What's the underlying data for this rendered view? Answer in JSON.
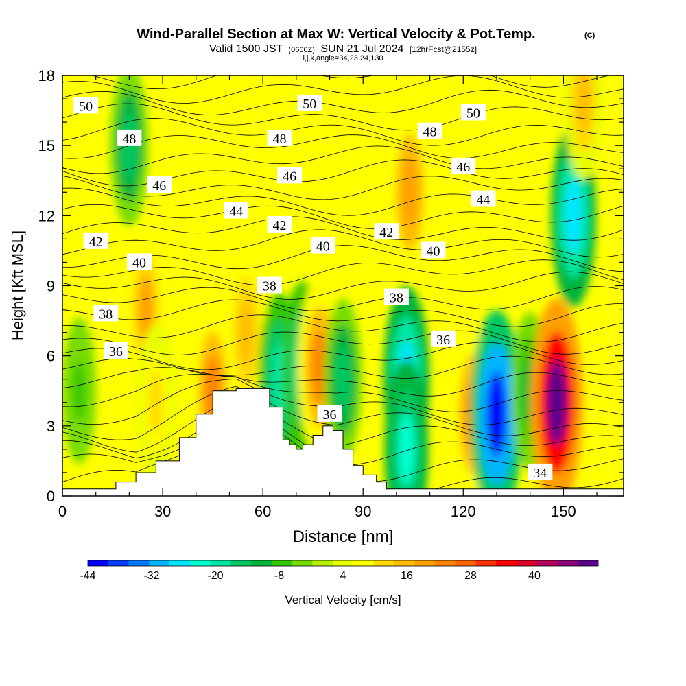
{
  "chart_data": {
    "type": "heatmap",
    "title": "Wind-Parallel Section at Max W: Vertical Velocity & Pot.Temp.",
    "title_mark": "(C)",
    "subtitle": {
      "valid": "Valid 1500 JST",
      "utc": "(0600Z)",
      "date": "SUN 21 Jul 2024",
      "forecast": "[12hrFcst@2155z]"
    },
    "section_params": "i,j,k,angle=34,23,24,130",
    "xlabel": "Distance [nm]",
    "ylabel": "Height [Kft MSL]",
    "xlim": [
      0,
      168
    ],
    "ylim": [
      0,
      18
    ],
    "x_ticks": [
      "0",
      "30",
      "60",
      "90",
      "120",
      "150"
    ],
    "x_tick_values": [
      0,
      30,
      60,
      90,
      120,
      150
    ],
    "y_ticks": [
      "0",
      "3",
      "6",
      "9",
      "12",
      "15",
      "18"
    ],
    "y_tick_values": [
      0,
      3,
      6,
      9,
      12,
      15,
      18
    ],
    "colorbar": {
      "label": "Vertical Velocity [cm/s]",
      "ticks": [
        "-44",
        "-32",
        "-20",
        "-8",
        "4",
        "16",
        "28",
        "40"
      ],
      "tick_values": [
        -44,
        -32,
        -20,
        -8,
        4,
        16,
        28,
        40
      ],
      "min": -44,
      "max": 52,
      "colors": [
        "#0000ff",
        "#0a3cff",
        "#0078ff",
        "#00b4ff",
        "#00e6ff",
        "#00ffd0",
        "#00e6a0",
        "#00c864",
        "#00b43c",
        "#32c800",
        "#78dc00",
        "#b4f000",
        "#e6ff00",
        "#ffff00",
        "#ffdc00",
        "#ffbe00",
        "#ffa000",
        "#ff8200",
        "#ff6400",
        "#ff3200",
        "#ff0000",
        "#dc0028",
        "#b4005a",
        "#8c0078",
        "#5a008c"
      ]
    },
    "w_cells": [
      {
        "x": 5,
        "y": 4.5,
        "w": -6
      },
      {
        "x": 20,
        "y": 15,
        "w": -14
      },
      {
        "x": 25,
        "y": 8,
        "w": 18
      },
      {
        "x": 28,
        "y": 4,
        "w": 12
      },
      {
        "x": 45,
        "y": 4.5,
        "w": 22
      },
      {
        "x": 55,
        "y": 7,
        "w": 16
      },
      {
        "x": 65,
        "y": 5,
        "w": -20
      },
      {
        "x": 72,
        "y": 5.5,
        "w": -20
      },
      {
        "x": 77,
        "y": 5.5,
        "w": 24
      },
      {
        "x": 84,
        "y": 5,
        "w": -14
      },
      {
        "x": 103,
        "y": 5,
        "w": -28
      },
      {
        "x": 103,
        "y": 2,
        "w": -24
      },
      {
        "x": 104,
        "y": 13,
        "w": 20
      },
      {
        "x": 123,
        "y": 3.5,
        "w": 22
      },
      {
        "x": 130,
        "y": 3.5,
        "w": -42
      },
      {
        "x": 140,
        "y": 4.5,
        "w": -12
      },
      {
        "x": 148,
        "y": 4,
        "w": 50
      },
      {
        "x": 153,
        "y": 12,
        "w": -26
      },
      {
        "x": 156,
        "y": 17,
        "w": 14
      }
    ],
    "theta_labels": [
      {
        "text": "50",
        "x": 7,
        "y": 16.7
      },
      {
        "text": "48",
        "x": 20,
        "y": 15.3
      },
      {
        "text": "46",
        "x": 29,
        "y": 13.3
      },
      {
        "text": "42",
        "x": 10,
        "y": 10.9
      },
      {
        "text": "40",
        "x": 23,
        "y": 10
      },
      {
        "text": "38",
        "x": 13,
        "y": 7.8
      },
      {
        "text": "36",
        "x": 16,
        "y": 6.2
      },
      {
        "text": "44",
        "x": 52,
        "y": 12.2
      },
      {
        "text": "48",
        "x": 65,
        "y": 15.3
      },
      {
        "text": "46",
        "x": 68,
        "y": 13.7
      },
      {
        "text": "42",
        "x": 65,
        "y": 11.6
      },
      {
        "text": "40",
        "x": 78,
        "y": 10.7
      },
      {
        "text": "38",
        "x": 62,
        "y": 9
      },
      {
        "text": "50",
        "x": 74,
        "y": 16.8
      },
      {
        "text": "36",
        "x": 80,
        "y": 3.5
      },
      {
        "text": "48",
        "x": 110,
        "y": 15.6
      },
      {
        "text": "46",
        "x": 120,
        "y": 14.1
      },
      {
        "text": "44",
        "x": 126,
        "y": 12.7
      },
      {
        "text": "42",
        "x": 97,
        "y": 11.3
      },
      {
        "text": "40",
        "x": 111,
        "y": 10.5
      },
      {
        "text": "38",
        "x": 100,
        "y": 8.5
      },
      {
        "text": "36",
        "x": 114,
        "y": 6.7
      },
      {
        "text": "50",
        "x": 123,
        "y": 16.4
      },
      {
        "text": "34",
        "x": 143,
        "y": 1
      }
    ],
    "terrain": [
      [
        0,
        0.3
      ],
      [
        12,
        0.3
      ],
      [
        16,
        0.6
      ],
      [
        22,
        1
      ],
      [
        28,
        1.5
      ],
      [
        35,
        2.5
      ],
      [
        40,
        3.5
      ],
      [
        45,
        4.5
      ],
      [
        52,
        4.6
      ],
      [
        58,
        4.6
      ],
      [
        62,
        3.8
      ],
      [
        66,
        2.4
      ],
      [
        68,
        2.2
      ],
      [
        70,
        2
      ],
      [
        72,
        2.2
      ],
      [
        75,
        2.6
      ],
      [
        78,
        3
      ],
      [
        81,
        2.8
      ],
      [
        84,
        2
      ],
      [
        87,
        1.3
      ],
      [
        90,
        0.9
      ],
      [
        94,
        0.6
      ],
      [
        97,
        0.3
      ],
      [
        168,
        0.3
      ]
    ]
  }
}
